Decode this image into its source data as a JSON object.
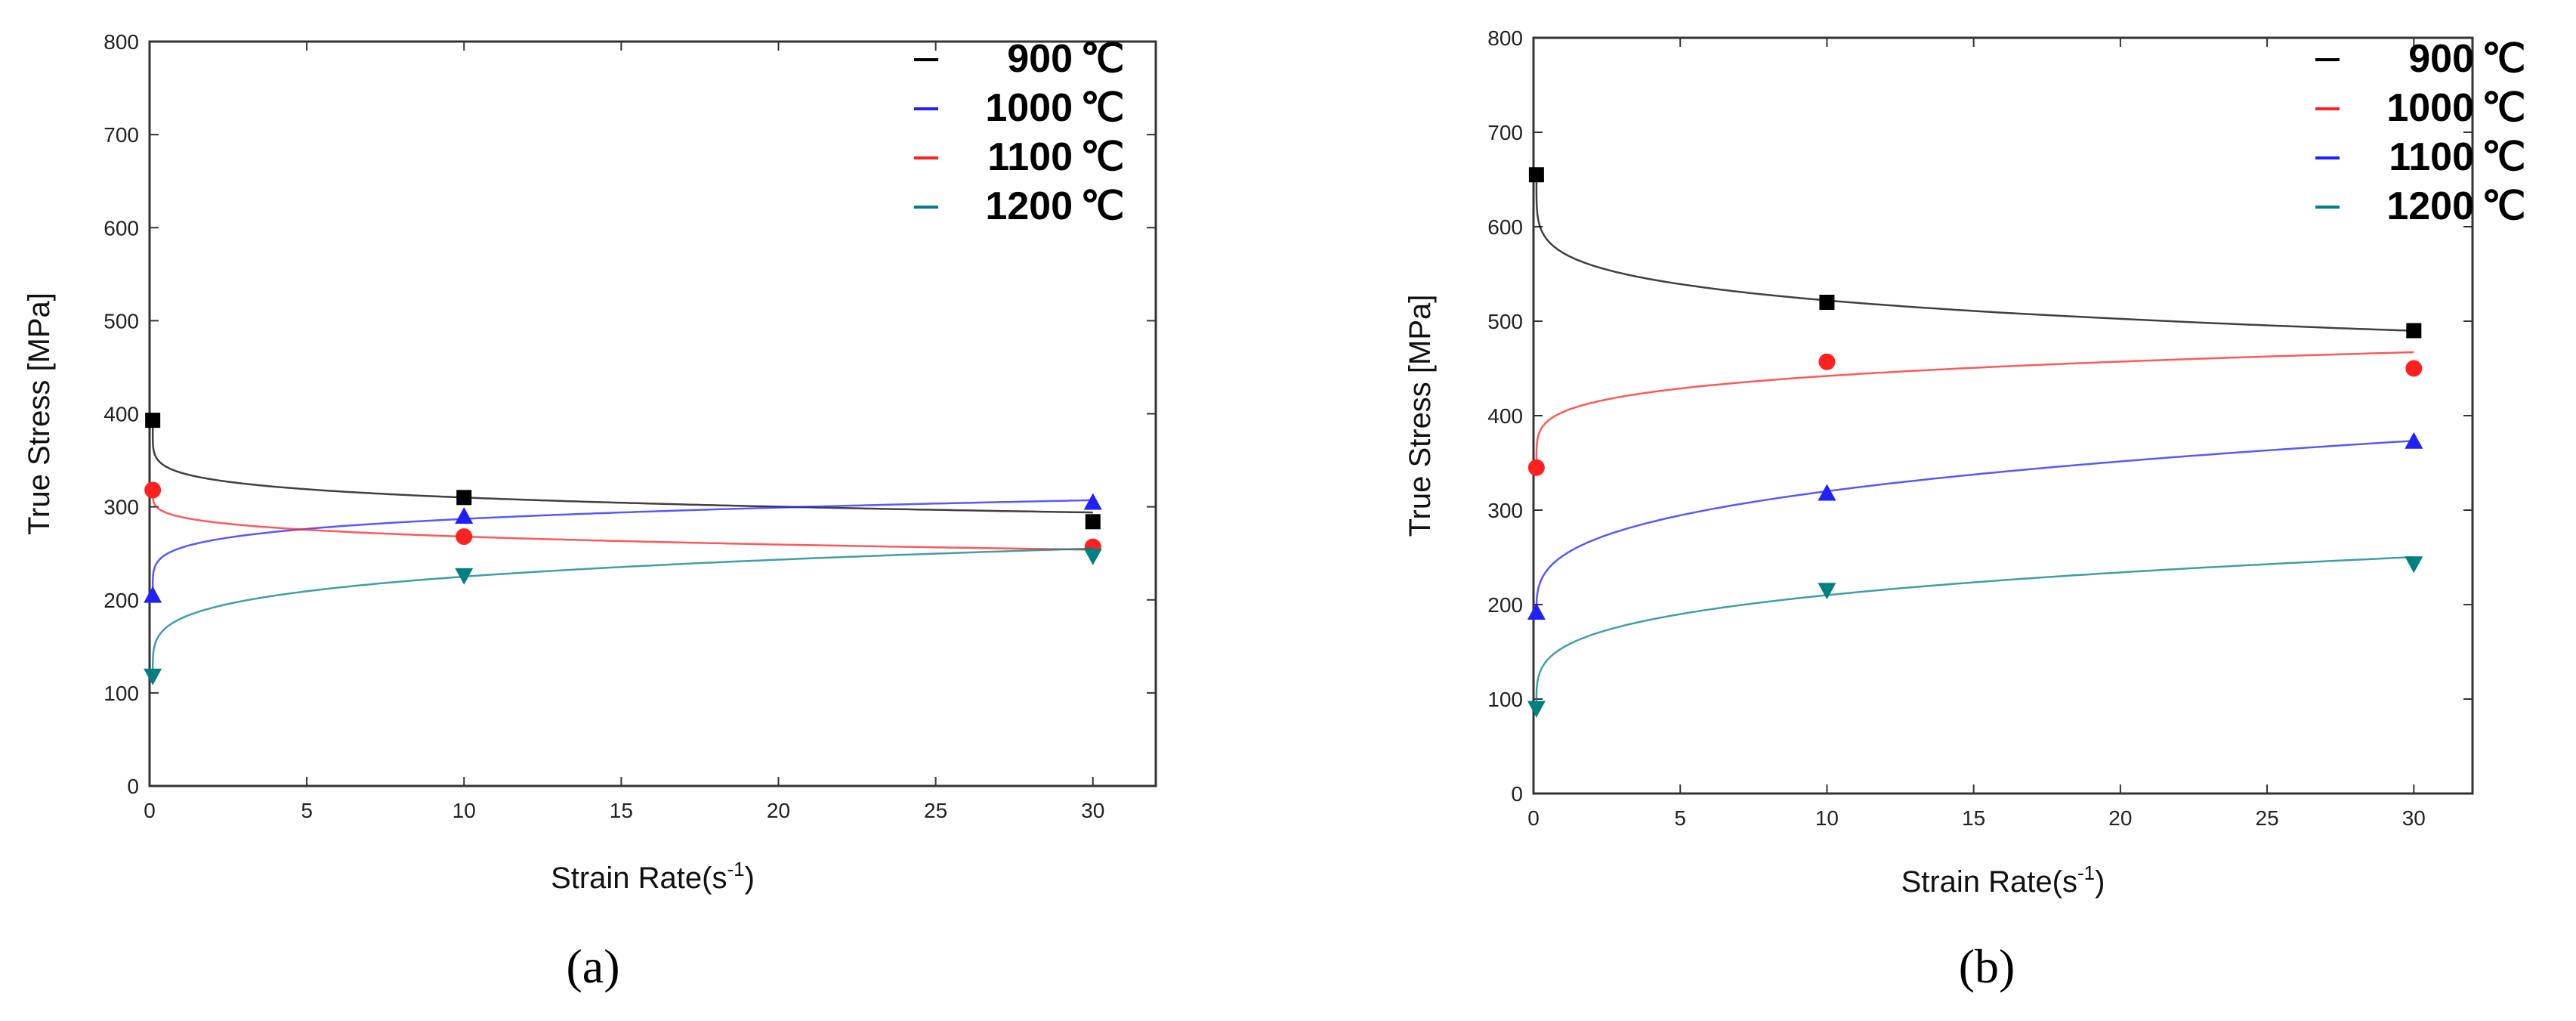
{
  "chart_data": [
    {
      "type": "scatter",
      "caption": "(a)",
      "xlabel": "Strain Rate(s",
      "xlabel_sup": "-1",
      "xlabel_close": ")",
      "ylabel": "True Stress [MPa]",
      "xlim": [
        0,
        32
      ],
      "ylim": [
        0,
        800
      ],
      "xticks": [
        0,
        5,
        10,
        15,
        20,
        25,
        30
      ],
      "yticks": [
        0,
        100,
        200,
        300,
        400,
        500,
        600,
        700,
        800
      ],
      "series": [
        {
          "name": "900",
          "unit": "℃",
          "color": "#000000",
          "marker": "square",
          "x": [
            0.1,
            10,
            30
          ],
          "y": [
            393,
            310,
            284
          ],
          "fit": [
            395,
            310,
            294
          ]
        },
        {
          "name": "1000",
          "unit": "℃",
          "color": "#2020ff",
          "marker": "triangle-up",
          "x": [
            0.1,
            10,
            30
          ],
          "y": [
            205,
            290,
            305
          ],
          "fit": [
            205,
            287,
            307
          ]
        },
        {
          "name": "1100",
          "unit": "℃",
          "color": "#ff2020",
          "marker": "circle",
          "x": [
            0.1,
            10,
            30
          ],
          "y": [
            318,
            268,
            257
          ],
          "fit": [
            320,
            268,
            254
          ]
        },
        {
          "name": "1200",
          "unit": "℃",
          "color": "#008080",
          "marker": "triangle-down",
          "x": [
            0.1,
            10,
            30
          ],
          "y": [
            118,
            226,
            247
          ],
          "fit": [
            115,
            225,
            255
          ]
        }
      ]
    },
    {
      "type": "scatter",
      "caption": "(b)",
      "xlabel": "Strain Rate(s",
      "xlabel_sup": "-1",
      "xlabel_close": ")",
      "ylabel": "True Stress [MPa]",
      "xlim": [
        0,
        32
      ],
      "ylim": [
        0,
        800
      ],
      "xticks": [
        0,
        5,
        10,
        15,
        20,
        25,
        30
      ],
      "yticks": [
        0,
        100,
        200,
        300,
        400,
        500,
        600,
        700,
        800
      ],
      "series": [
        {
          "name": "900",
          "unit": "℃",
          "color": "#000000",
          "marker": "square",
          "x": [
            0.1,
            10,
            30
          ],
          "y": [
            655,
            520,
            490
          ],
          "fit": [
            660,
            522,
            490
          ]
        },
        {
          "name": "1000",
          "unit": "℃",
          "color": "#ff2020",
          "marker": "circle",
          "x": [
            0.1,
            10,
            30
          ],
          "y": [
            345,
            457,
            450
          ],
          "fit": [
            345,
            442,
            467
          ]
        },
        {
          "name": "1100",
          "unit": "℃",
          "color": "#2020ff",
          "marker": "triangle-up",
          "x": [
            0.1,
            10,
            30
          ],
          "y": [
            192,
            318,
            373
          ],
          "fit": [
            190,
            320,
            373
          ]
        },
        {
          "name": "1200",
          "unit": "℃",
          "color": "#008080",
          "marker": "triangle-down",
          "x": [
            0.1,
            10,
            30
          ],
          "y": [
            90,
            215,
            243
          ],
          "fit": [
            92,
            210,
            250
          ]
        }
      ]
    }
  ]
}
